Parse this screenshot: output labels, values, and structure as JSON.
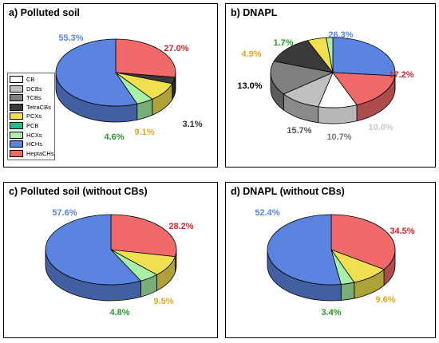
{
  "legend": {
    "items": [
      {
        "label": "CB",
        "color": "#ffffff"
      },
      {
        "label": "DCBs",
        "color": "#c0c0c0"
      },
      {
        "label": "TCBs",
        "color": "#7f7f7f"
      },
      {
        "label": "TetraCBs",
        "color": "#3a3a3a"
      },
      {
        "label": "PCXs",
        "color": "#f0e04f"
      },
      {
        "label": "PCB",
        "color": "#22bf8a"
      },
      {
        "label": "HCXs",
        "color": "#a8f0a8"
      },
      {
        "label": "HCHs",
        "color": "#5b84e0"
      },
      {
        "label": "HeptaCHs",
        "color": "#f06a6a"
      }
    ]
  },
  "chart_data": [
    {
      "type": "pie",
      "title": "a) Polluted soil",
      "slices": [
        {
          "name": "HeptaCHs",
          "value": 27.0,
          "label": "27.0%",
          "color": "#f06a6a",
          "label_color": "#e0202a"
        },
        {
          "name": "TetraCBs",
          "value": 3.1,
          "label": "3.1%",
          "color": "#3a3a3a",
          "label_color": "#333333"
        },
        {
          "name": "PCXs",
          "value": 9.1,
          "label": "9.1%",
          "color": "#f0e04f",
          "label_color": "#e0a818"
        },
        {
          "name": "HCXs",
          "value": 4.6,
          "label": "4.6%",
          "color": "#a8f0a8",
          "label_color": "#2a9a2a"
        },
        {
          "name": "HCHs",
          "value": 55.3,
          "label": "55.3%",
          "color": "#5b84e0",
          "label_color": "#5b84e0"
        }
      ]
    },
    {
      "type": "pie",
      "title": "b) DNAPL",
      "slices": [
        {
          "name": "HCHs",
          "value": 26.3,
          "label": "26.3%",
          "color": "#5b84e0",
          "label_color": "#5b84e0"
        },
        {
          "name": "HeptaCHs",
          "value": 17.2,
          "label": "17.2%",
          "color": "#f06a6a",
          "label_color": "#e0202a"
        },
        {
          "name": "CB",
          "value": 10.0,
          "label": "10.0%",
          "color": "#ffffff",
          "label_color": "#c8c8c8"
        },
        {
          "name": "DCBs",
          "value": 10.7,
          "label": "10.7%",
          "color": "#c0c0c0",
          "label_color": "#777777"
        },
        {
          "name": "TCBs",
          "value": 15.7,
          "label": "15.7%",
          "color": "#7f7f7f",
          "label_color": "#555555"
        },
        {
          "name": "TetraCBs",
          "value": 13.0,
          "label": "13.0%",
          "color": "#3a3a3a",
          "label_color": "#000000"
        },
        {
          "name": "PCXs",
          "value": 4.9,
          "label": "4.9%",
          "color": "#f0e04f",
          "label_color": "#e0a818"
        },
        {
          "name": "HCXs",
          "value": 1.7,
          "label": "1.7%",
          "color": "#a8f0a8",
          "label_color": "#2a9a2a"
        }
      ]
    },
    {
      "type": "pie",
      "title": "c) Polluted soil (without CBs)",
      "slices": [
        {
          "name": "HeptaCHs",
          "value": 28.2,
          "label": "28.2%",
          "color": "#f06a6a",
          "label_color": "#e0202a"
        },
        {
          "name": "PCXs",
          "value": 9.5,
          "label": "9.5%",
          "color": "#f0e04f",
          "label_color": "#e0a818"
        },
        {
          "name": "HCXs",
          "value": 4.8,
          "label": "4.8%",
          "color": "#a8f0a8",
          "label_color": "#2a9a2a"
        },
        {
          "name": "HCHs",
          "value": 57.6,
          "label": "57.6%",
          "color": "#5b84e0",
          "label_color": "#5b84e0"
        }
      ]
    },
    {
      "type": "pie",
      "title": "d) DNAPL (without CBs)",
      "slices": [
        {
          "name": "HeptaCHs",
          "value": 34.5,
          "label": "34.5%",
          "color": "#f06a6a",
          "label_color": "#e0202a"
        },
        {
          "name": "PCXs",
          "value": 9.6,
          "label": "9.6%",
          "color": "#f0e04f",
          "label_color": "#e0a818"
        },
        {
          "name": "HCXs",
          "value": 3.4,
          "label": "3.4%",
          "color": "#a8f0a8",
          "label_color": "#2a9a2a"
        },
        {
          "name": "HCHs",
          "value": 52.4,
          "label": "52.4%",
          "color": "#5b84e0",
          "label_color": "#5b84e0"
        }
      ]
    }
  ]
}
